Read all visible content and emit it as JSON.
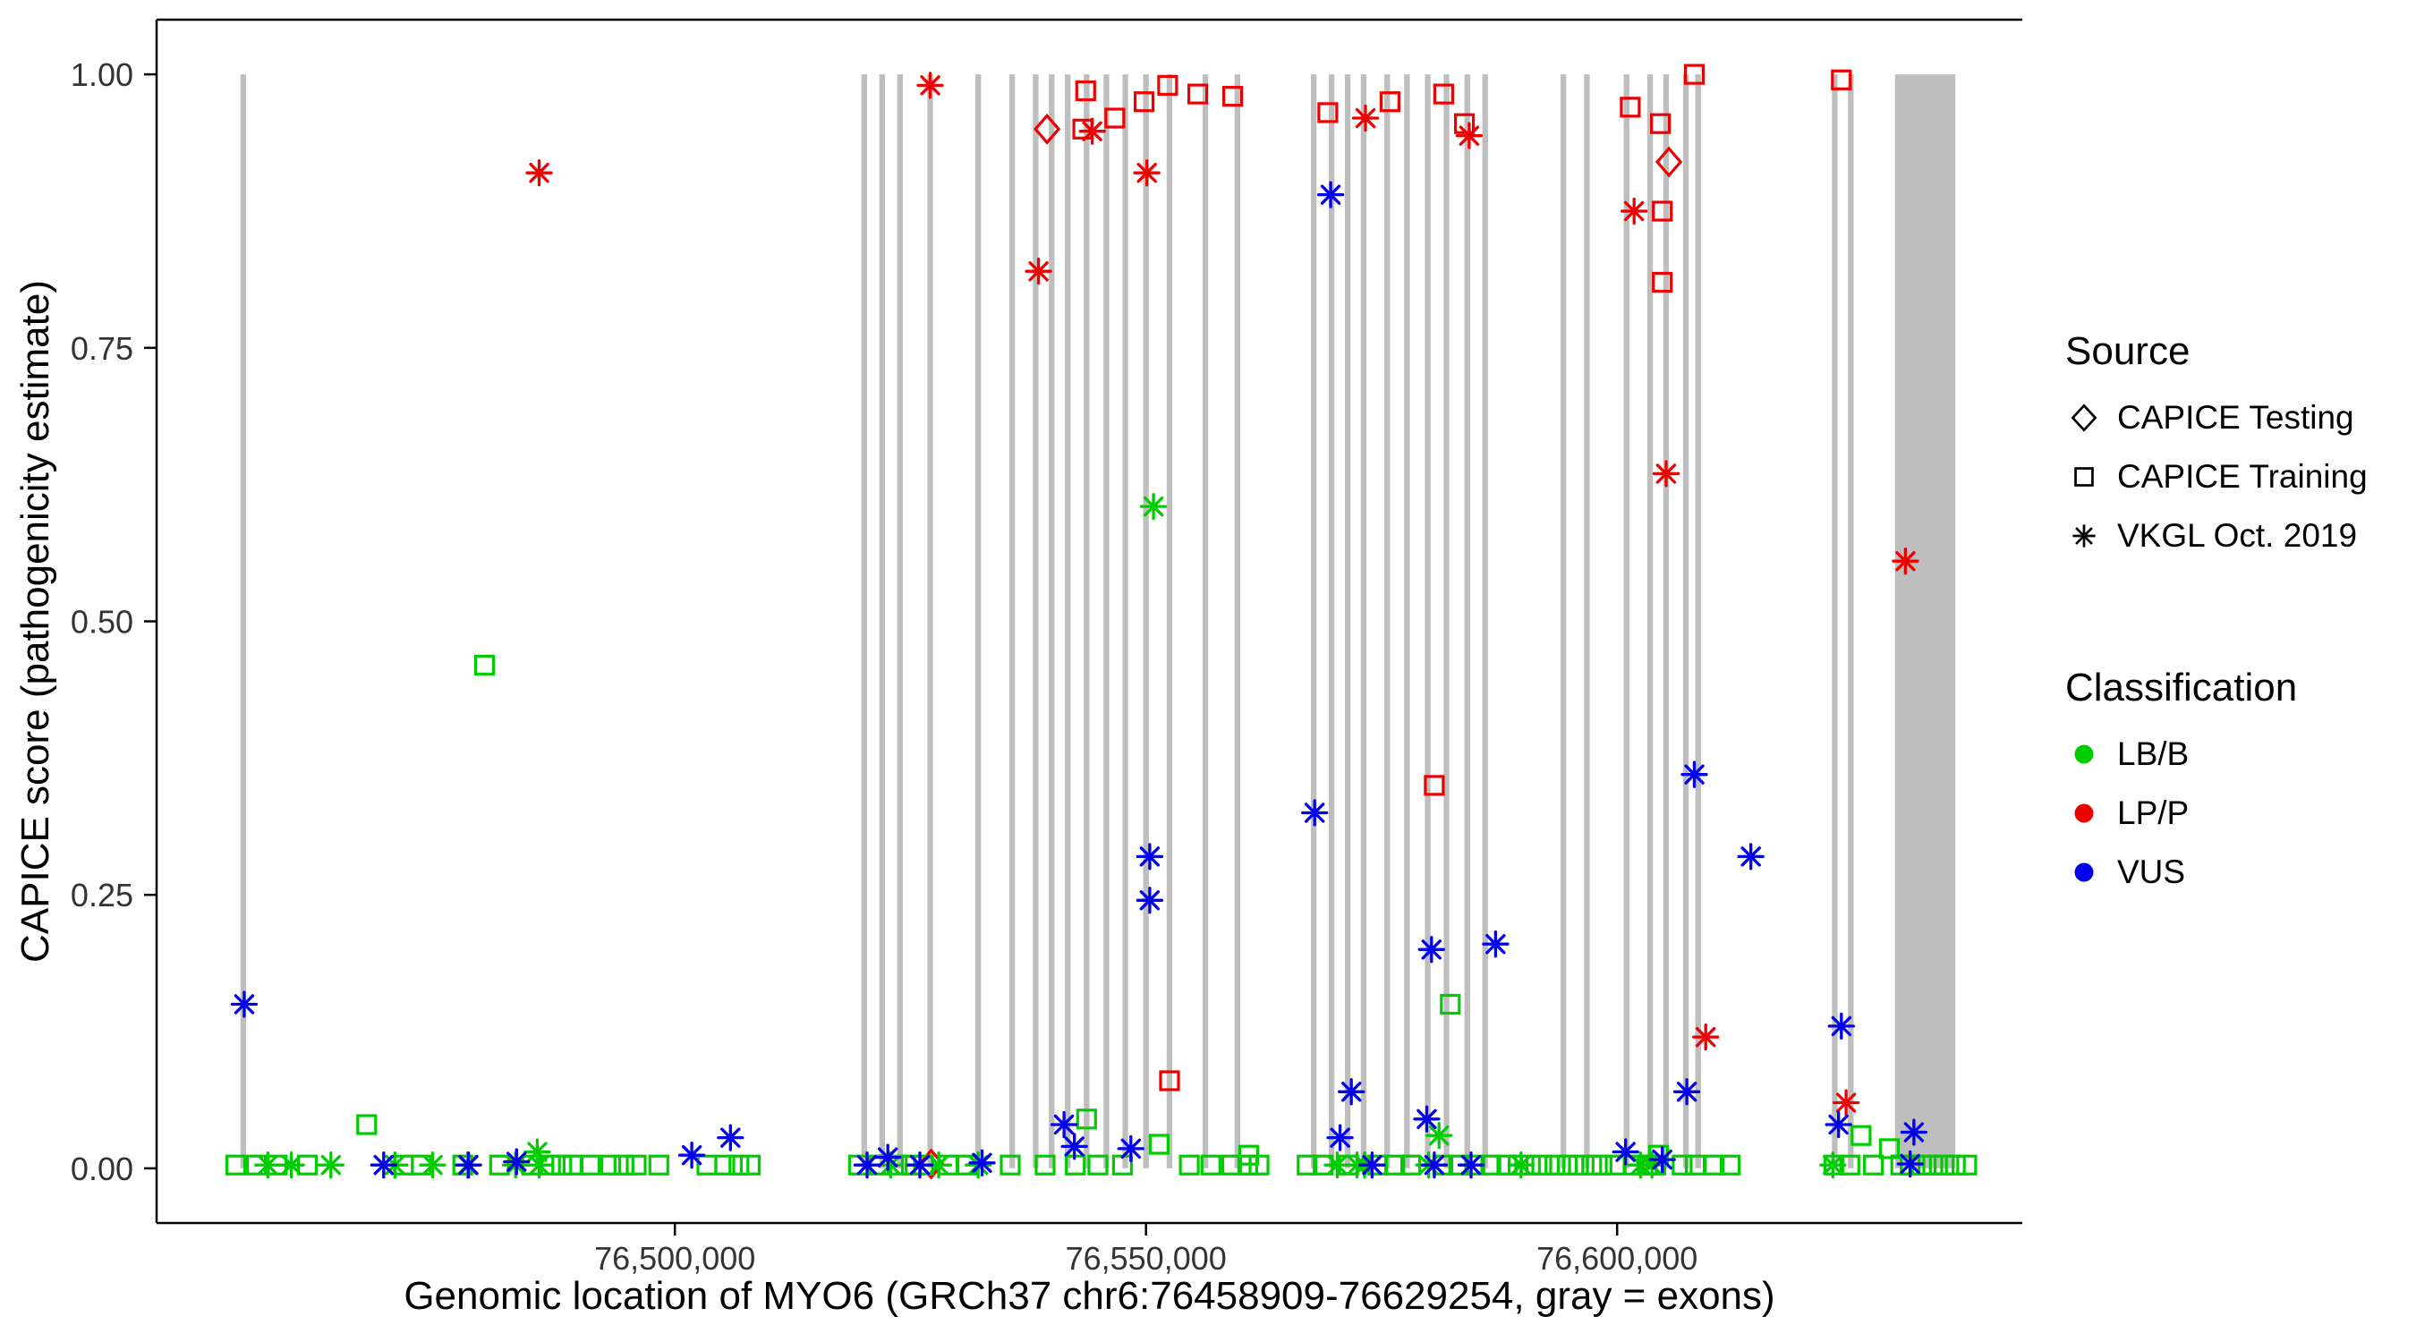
{
  "chart_data": {
    "type": "scatter",
    "title": "",
    "xlabel": "Genomic location of MYO6 (GRCh37 chr6:76458909-76629254, gray = exons)",
    "ylabel": "CAPICE score (pathogenicity estimate)",
    "xlim": [
      76445000,
      76643000
    ],
    "ylim": [
      -0.05,
      1.05
    ],
    "grid": "off",
    "x_ticks": [
      {
        "value": 76500000,
        "label": "76,500,000"
      },
      {
        "value": 76550000,
        "label": "76,550,000"
      },
      {
        "value": 76600000,
        "label": "76,600,000"
      }
    ],
    "y_ticks": [
      {
        "value": 0.0,
        "label": "0.00"
      },
      {
        "value": 0.25,
        "label": "0.25"
      },
      {
        "value": 0.5,
        "label": "0.50"
      },
      {
        "value": 0.75,
        "label": "0.75"
      },
      {
        "value": 1.0,
        "label": "1.00"
      }
    ],
    "colors": {
      "lb_b": "#00CD00",
      "lp_p": "#EE0000",
      "vus": "#0000EE",
      "exon": "#BEBEBE",
      "axis": "#000000"
    },
    "legend": {
      "position": "right",
      "source": {
        "title": "Source",
        "items": [
          {
            "label": "CAPICE Testing",
            "shape": "diamond"
          },
          {
            "label": "CAPICE Training",
            "shape": "square"
          },
          {
            "label": "VKGL Oct. 2019",
            "shape": "asterisk"
          }
        ]
      },
      "classification": {
        "title": "Classification",
        "items": [
          {
            "label": "LB/B",
            "color_key": "lb_b"
          },
          {
            "label": "LP/P",
            "color_key": "lp_p"
          },
          {
            "label": "VUS",
            "color_key": "vus"
          }
        ]
      }
    },
    "exons_note": "gray vertical bands = exons, pairs are [start,end] genomic positions",
    "exons": [
      [
        76453900,
        76454500
      ],
      [
        76519800,
        76520400
      ],
      [
        76521700,
        76522300
      ],
      [
        76523600,
        76524200
      ],
      [
        76526800,
        76527400
      ],
      [
        76531900,
        76532500
      ],
      [
        76535500,
        76536100
      ],
      [
        76538000,
        76538600
      ],
      [
        76539700,
        76540300
      ],
      [
        76541400,
        76542000
      ],
      [
        76543400,
        76544000
      ],
      [
        76545500,
        76546100
      ],
      [
        76547500,
        76548100
      ],
      [
        76549700,
        76550300
      ],
      [
        76552200,
        76552800
      ],
      [
        76556000,
        76556600
      ],
      [
        76559400,
        76560000
      ],
      [
        76567500,
        76568100
      ],
      [
        76569400,
        76570000
      ],
      [
        76571100,
        76571700
      ],
      [
        76572800,
        76573400
      ],
      [
        76575300,
        76575900
      ],
      [
        76577400,
        76578000
      ],
      [
        76579600,
        76580200
      ],
      [
        76581600,
        76582200
      ],
      [
        76583800,
        76584400
      ],
      [
        76585700,
        76586300
      ],
      [
        76594000,
        76594600
      ],
      [
        76596500,
        76597100
      ],
      [
        76600700,
        76601300
      ],
      [
        76603200,
        76603800
      ],
      [
        76604900,
        76605500
      ],
      [
        76607000,
        76607600
      ],
      [
        76608300,
        76608900
      ],
      [
        76622800,
        76623400
      ],
      [
        76624500,
        76625100
      ],
      [
        76629500,
        76635900
      ]
    ],
    "point_format": "[genomic_position, capice_score, shape(diamond|square|asterisk), classification(LB/B|LP/P|VUS)]",
    "points": [
      [
        76485600,
        0.91,
        "asterisk",
        "LP/P"
      ],
      [
        76527100,
        0.99,
        "asterisk",
        "LP/P"
      ],
      [
        76539500,
        0.95,
        "diamond",
        "LP/P"
      ],
      [
        76538600,
        0.82,
        "asterisk",
        "LP/P"
      ],
      [
        76543600,
        0.985,
        "square",
        "LP/P"
      ],
      [
        76543300,
        0.95,
        "square",
        "LP/P"
      ],
      [
        76544300,
        0.948,
        "asterisk",
        "LP/P"
      ],
      [
        76546700,
        0.96,
        "square",
        "LP/P"
      ],
      [
        76549800,
        0.975,
        "square",
        "LP/P"
      ],
      [
        76552300,
        0.99,
        "square",
        "LP/P"
      ],
      [
        76550100,
        0.91,
        "asterisk",
        "LP/P"
      ],
      [
        76555500,
        0.982,
        "square",
        "LP/P"
      ],
      [
        76559200,
        0.98,
        "square",
        "LP/P"
      ],
      [
        76569300,
        0.965,
        "square",
        "LP/P"
      ],
      [
        76573300,
        0.96,
        "asterisk",
        "LP/P"
      ],
      [
        76575900,
        0.975,
        "square",
        "LP/P"
      ],
      [
        76581600,
        0.982,
        "square",
        "LP/P"
      ],
      [
        76583800,
        0.955,
        "square",
        "LP/P"
      ],
      [
        76584300,
        0.944,
        "asterisk",
        "LP/P"
      ],
      [
        76580600,
        0.35,
        "square",
        "LP/P"
      ],
      [
        76601400,
        0.97,
        "square",
        "LP/P"
      ],
      [
        76601800,
        0.875,
        "asterisk",
        "LP/P"
      ],
      [
        76604600,
        0.955,
        "square",
        "LP/P"
      ],
      [
        76605500,
        0.92,
        "diamond",
        "LP/P"
      ],
      [
        76604800,
        0.875,
        "square",
        "LP/P"
      ],
      [
        76604800,
        0.81,
        "square",
        "LP/P"
      ],
      [
        76608200,
        1.0,
        "square",
        "LP/P"
      ],
      [
        76605200,
        0.635,
        "asterisk",
        "LP/P"
      ],
      [
        76623800,
        0.995,
        "square",
        "LP/P"
      ],
      [
        76630600,
        0.555,
        "asterisk",
        "LP/P"
      ],
      [
        76552500,
        0.08,
        "square",
        "LP/P"
      ],
      [
        76609400,
        0.12,
        "asterisk",
        "LP/P"
      ],
      [
        76624300,
        0.06,
        "asterisk",
        "LP/P"
      ],
      [
        76527200,
        0.004,
        "diamond",
        "LP/P"
      ],
      [
        76479800,
        0.46,
        "square",
        "LB/B"
      ],
      [
        76550800,
        0.605,
        "asterisk",
        "LB/B"
      ],
      [
        76467300,
        0.04,
        "square",
        "LB/B"
      ],
      [
        76543700,
        0.045,
        "square",
        "LB/B"
      ],
      [
        76582300,
        0.15,
        "square",
        "LB/B"
      ],
      [
        76581100,
        0.03,
        "asterisk",
        "LB/B"
      ],
      [
        76551400,
        0.022,
        "square",
        "LB/B"
      ],
      [
        76485400,
        0.015,
        "asterisk",
        "LB/B"
      ],
      [
        76560900,
        0.012,
        "square",
        "LB/B"
      ],
      [
        76625900,
        0.03,
        "square",
        "LB/B"
      ],
      [
        76628900,
        0.018,
        "square",
        "LB/B"
      ],
      [
        76604400,
        0.012,
        "square",
        "LB/B"
      ],
      [
        76453400,
        0.003,
        "square",
        "LB/B"
      ],
      [
        76455600,
        0.003,
        "square",
        "LB/B"
      ],
      [
        76457800,
        0.003,
        "square",
        "LB/B"
      ],
      [
        76461000,
        0.003,
        "square",
        "LB/B"
      ],
      [
        76471200,
        0.003,
        "square",
        "LB/B"
      ],
      [
        76473100,
        0.003,
        "square",
        "LB/B"
      ],
      [
        76477500,
        0.003,
        "square",
        "LB/B"
      ],
      [
        76481400,
        0.003,
        "square",
        "LB/B"
      ],
      [
        76484800,
        0.003,
        "square",
        "LB/B"
      ],
      [
        76486800,
        0.003,
        "square",
        "LB/B"
      ],
      [
        76488000,
        0.003,
        "square",
        "LB/B"
      ],
      [
        76489200,
        0.003,
        "square",
        "LB/B"
      ],
      [
        76491000,
        0.003,
        "square",
        "LB/B"
      ],
      [
        76493200,
        0.003,
        "square",
        "LB/B"
      ],
      [
        76494600,
        0.003,
        "square",
        "LB/B"
      ],
      [
        76495900,
        0.003,
        "square",
        "LB/B"
      ],
      [
        76498300,
        0.003,
        "square",
        "LB/B"
      ],
      [
        76503400,
        0.003,
        "square",
        "LB/B"
      ],
      [
        76505300,
        0.003,
        "square",
        "LB/B"
      ],
      [
        76506800,
        0.003,
        "square",
        "LB/B"
      ],
      [
        76508000,
        0.003,
        "square",
        "LB/B"
      ],
      [
        76519500,
        0.003,
        "square",
        "LB/B"
      ],
      [
        76521700,
        0.003,
        "square",
        "LB/B"
      ],
      [
        76523600,
        0.003,
        "square",
        "LB/B"
      ],
      [
        76525100,
        0.003,
        "square",
        "LB/B"
      ],
      [
        76526400,
        0.003,
        "square",
        "LB/B"
      ],
      [
        76529000,
        0.003,
        "square",
        "LB/B"
      ],
      [
        76531000,
        0.003,
        "square",
        "LB/B"
      ],
      [
        76535600,
        0.003,
        "square",
        "LB/B"
      ],
      [
        76539300,
        0.003,
        "square",
        "LB/B"
      ],
      [
        76542500,
        0.003,
        "square",
        "LB/B"
      ],
      [
        76544900,
        0.003,
        "square",
        "LB/B"
      ],
      [
        76547500,
        0.003,
        "square",
        "LB/B"
      ],
      [
        76554600,
        0.003,
        "square",
        "LB/B"
      ],
      [
        76556900,
        0.003,
        "square",
        "LB/B"
      ],
      [
        76559100,
        0.003,
        "square",
        "LB/B"
      ],
      [
        76560800,
        0.003,
        "square",
        "LB/B"
      ],
      [
        76562000,
        0.003,
        "square",
        "LB/B"
      ],
      [
        76567100,
        0.003,
        "square",
        "LB/B"
      ],
      [
        76568800,
        0.003,
        "square",
        "LB/B"
      ],
      [
        76571500,
        0.003,
        "square",
        "LB/B"
      ],
      [
        76574600,
        0.003,
        "square",
        "LB/B"
      ],
      [
        76576400,
        0.003,
        "square",
        "LB/B"
      ],
      [
        76578100,
        0.003,
        "square",
        "LB/B"
      ],
      [
        76581500,
        0.003,
        "square",
        "LB/B"
      ],
      [
        76583200,
        0.003,
        "square",
        "LB/B"
      ],
      [
        76584900,
        0.003,
        "square",
        "LB/B"
      ],
      [
        76586600,
        0.003,
        "square",
        "LB/B"
      ],
      [
        76588300,
        0.003,
        "square",
        "LB/B"
      ],
      [
        76589500,
        0.003,
        "square",
        "LB/B"
      ],
      [
        76590800,
        0.003,
        "square",
        "LB/B"
      ],
      [
        76592000,
        0.003,
        "square",
        "LB/B"
      ],
      [
        76593400,
        0.003,
        "square",
        "LB/B"
      ],
      [
        76594700,
        0.003,
        "square",
        "LB/B"
      ],
      [
        76595900,
        0.003,
        "square",
        "LB/B"
      ],
      [
        76597300,
        0.003,
        "square",
        "LB/B"
      ],
      [
        76598400,
        0.003,
        "square",
        "LB/B"
      ],
      [
        76599800,
        0.003,
        "square",
        "LB/B"
      ],
      [
        76601800,
        0.003,
        "square",
        "LB/B"
      ],
      [
        76603200,
        0.003,
        "square",
        "LB/B"
      ],
      [
        76604100,
        0.003,
        "square",
        "LB/B"
      ],
      [
        76606900,
        0.003,
        "square",
        "LB/B"
      ],
      [
        76608300,
        0.003,
        "square",
        "LB/B"
      ],
      [
        76610300,
        0.003,
        "square",
        "LB/B"
      ],
      [
        76612000,
        0.003,
        "square",
        "LB/B"
      ],
      [
        76623000,
        0.003,
        "square",
        "LB/B"
      ],
      [
        76624700,
        0.003,
        "square",
        "LB/B"
      ],
      [
        76627200,
        0.003,
        "square",
        "LB/B"
      ],
      [
        76630100,
        0.003,
        "square",
        "LB/B"
      ],
      [
        76631100,
        0.003,
        "square",
        "LB/B"
      ],
      [
        76632300,
        0.003,
        "square",
        "LB/B"
      ],
      [
        76633500,
        0.003,
        "square",
        "LB/B"
      ],
      [
        76634700,
        0.003,
        "square",
        "LB/B"
      ],
      [
        76635900,
        0.003,
        "square",
        "LB/B"
      ],
      [
        76637100,
        0.003,
        "square",
        "LB/B"
      ],
      [
        76456800,
        0.003,
        "asterisk",
        "LB/B"
      ],
      [
        76459300,
        0.003,
        "asterisk",
        "LB/B"
      ],
      [
        76463500,
        0.003,
        "asterisk",
        "LB/B"
      ],
      [
        76470300,
        0.003,
        "asterisk",
        "LB/B"
      ],
      [
        76474300,
        0.003,
        "asterisk",
        "LB/B"
      ],
      [
        76478000,
        0.003,
        "asterisk",
        "LB/B"
      ],
      [
        76483100,
        0.003,
        "asterisk",
        "LB/B"
      ],
      [
        76485600,
        0.003,
        "asterisk",
        "LB/B"
      ],
      [
        76522900,
        0.003,
        "asterisk",
        "LB/B"
      ],
      [
        76528000,
        0.003,
        "asterisk",
        "LB/B"
      ],
      [
        76532200,
        0.003,
        "asterisk",
        "LB/B"
      ],
      [
        76570300,
        0.003,
        "asterisk",
        "LB/B"
      ],
      [
        76572400,
        0.003,
        "asterisk",
        "LB/B"
      ],
      [
        76573200,
        0.003,
        "asterisk",
        "LB/B"
      ],
      [
        76580000,
        0.003,
        "asterisk",
        "LB/B"
      ],
      [
        76589800,
        0.003,
        "asterisk",
        "LB/B"
      ],
      [
        76602500,
        0.003,
        "asterisk",
        "LB/B"
      ],
      [
        76603700,
        0.003,
        "asterisk",
        "LB/B"
      ],
      [
        76622900,
        0.003,
        "asterisk",
        "LB/B"
      ],
      [
        76454300,
        0.15,
        "asterisk",
        "VUS"
      ],
      [
        76569600,
        0.89,
        "asterisk",
        "VUS"
      ],
      [
        76567900,
        0.325,
        "asterisk",
        "VUS"
      ],
      [
        76550400,
        0.285,
        "asterisk",
        "VUS"
      ],
      [
        76550400,
        0.245,
        "asterisk",
        "VUS"
      ],
      [
        76608200,
        0.36,
        "asterisk",
        "VUS"
      ],
      [
        76614200,
        0.285,
        "asterisk",
        "VUS"
      ],
      [
        76580300,
        0.2,
        "asterisk",
        "VUS"
      ],
      [
        76587100,
        0.205,
        "asterisk",
        "VUS"
      ],
      [
        76571800,
        0.07,
        "asterisk",
        "VUS"
      ],
      [
        76607400,
        0.07,
        "asterisk",
        "VUS"
      ],
      [
        76623800,
        0.13,
        "asterisk",
        "VUS"
      ],
      [
        76541300,
        0.04,
        "asterisk",
        "VUS"
      ],
      [
        76570600,
        0.028,
        "asterisk",
        "VUS"
      ],
      [
        76579800,
        0.045,
        "asterisk",
        "VUS"
      ],
      [
        76623500,
        0.04,
        "asterisk",
        "VUS"
      ],
      [
        76631500,
        0.033,
        "asterisk",
        "VUS"
      ],
      [
        76505900,
        0.028,
        "asterisk",
        "VUS"
      ],
      [
        76501800,
        0.012,
        "asterisk",
        "VUS"
      ],
      [
        76469100,
        0.003,
        "asterisk",
        "VUS"
      ],
      [
        76483200,
        0.006,
        "asterisk",
        "VUS"
      ],
      [
        76478100,
        0.003,
        "asterisk",
        "VUS"
      ],
      [
        76520400,
        0.003,
        "asterisk",
        "VUS"
      ],
      [
        76532600,
        0.005,
        "asterisk",
        "VUS"
      ],
      [
        76600900,
        0.015,
        "asterisk",
        "VUS"
      ],
      [
        76604800,
        0.008,
        "asterisk",
        "VUS"
      ],
      [
        76522600,
        0.01,
        "asterisk",
        "VUS"
      ],
      [
        76580600,
        0.003,
        "asterisk",
        "VUS"
      ],
      [
        76631100,
        0.004,
        "asterisk",
        "VUS"
      ],
      [
        76542400,
        0.02,
        "asterisk",
        "VUS"
      ],
      [
        76526000,
        0.003,
        "asterisk",
        "VUS"
      ],
      [
        76574000,
        0.003,
        "asterisk",
        "VUS"
      ],
      [
        76584500,
        0.003,
        "asterisk",
        "VUS"
      ],
      [
        76548400,
        0.018,
        "asterisk",
        "VUS"
      ]
    ]
  }
}
